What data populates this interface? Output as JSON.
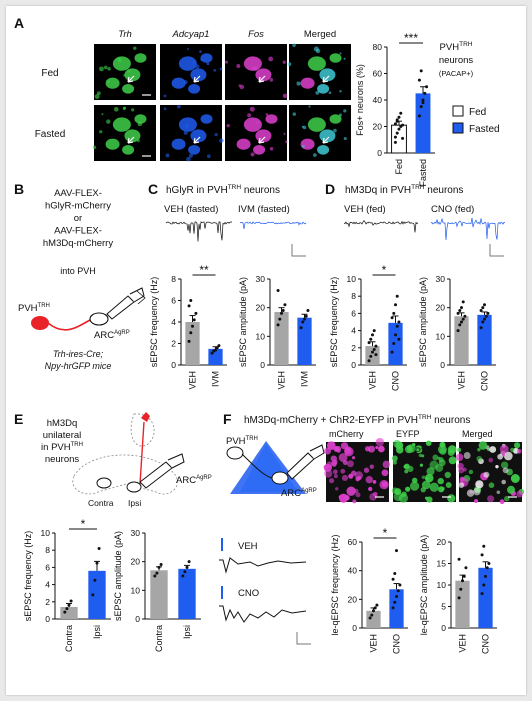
{
  "colors": {
    "blue": "#1f5cf0",
    "gray": "#a6a6a6",
    "red": "#e8232a",
    "green": "#3fd04a",
    "magenta": "#e040d0",
    "cyan": "#3fc9d6",
    "trace_black": "#111111"
  },
  "panelA": {
    "letter": "A",
    "channels": [
      "Trh",
      "Adcyap1",
      "Fos",
      "Merged"
    ],
    "rows": [
      "Fed",
      "Fasted"
    ],
    "neuron_title_main": "PVH",
    "neuron_title_sup": "TRH",
    "neuron_title_rest": "neurons",
    "neuron_subtitle": "(PACAP+)",
    "legend": [
      "Fed",
      "Fasted"
    ],
    "significance": "***",
    "chart_data": {
      "type": "bar",
      "categories": [
        "Fed",
        "Fasted"
      ],
      "values": [
        21,
        45
      ],
      "sem": [
        3,
        5
      ],
      "points": [
        [
          12,
          15,
          18,
          20,
          21,
          22,
          24,
          27,
          30,
          11,
          8,
          25
        ],
        [
          28,
          35,
          40,
          45,
          50,
          55,
          62,
          38
        ]
      ],
      "ylabel": "Fos+ neurons (%)",
      "yticks": [
        0,
        20,
        40,
        60,
        80
      ],
      "ylim": [
        0,
        80
      ]
    }
  },
  "panelB": {
    "letter": "B",
    "construct_lines": [
      "AAV-FLEX-",
      "hGlyR-mCherry",
      "or",
      "AAV-FLEX-",
      "hM3Dq-mCherry"
    ],
    "into": "into PVH",
    "pvh_main": "PVH",
    "pvh_sup": "TRH",
    "arc_main": "ARC",
    "arc_sup": "AgRP",
    "mice_line1": "Trh-ires-Cre;",
    "mice_line2": "Npy-hrGFP mice"
  },
  "panelC": {
    "letter": "C",
    "title_pre": "hGlyR in PVH",
    "title_sup": "TRH",
    "title_post": " neurons",
    "trace_left": "VEH (fasted)",
    "trace_right": "IVM (fasted)",
    "significance": "**",
    "chart_data": [
      {
        "type": "bar",
        "categories": [
          "VEH",
          "IVM"
        ],
        "values": [
          4.0,
          1.5
        ],
        "sem": [
          0.6,
          0.2
        ],
        "points": [
          [
            2.2,
            3.0,
            3.6,
            4.2,
            4.8,
            5.5,
            6.0
          ],
          [
            1.1,
            1.3,
            1.4,
            1.6,
            1.8
          ]
        ],
        "ylabel": "sEPSC frequency (Hz)",
        "yticks": [
          0,
          2,
          4,
          6,
          8
        ],
        "ylim": [
          0,
          8
        ]
      },
      {
        "type": "bar",
        "categories": [
          "VEH",
          "IVM"
        ],
        "values": [
          18.5,
          16.5
        ],
        "sem": [
          1.5,
          1.2
        ],
        "points": [
          [
            14,
            16,
            18,
            19,
            21,
            26
          ],
          [
            13,
            15,
            16,
            17,
            19
          ]
        ],
        "ylabel": "sEPSC amplitude (pA)",
        "yticks": [
          0,
          10,
          20,
          30
        ],
        "ylim": [
          0,
          30
        ]
      }
    ]
  },
  "panelD": {
    "letter": "D",
    "title_pre": "hM3Dq in PVH",
    "title_sup": "TRH",
    "title_post": " neurons",
    "trace_left": "VEH (fed)",
    "trace_right": "CNO (fed)",
    "significance": "*",
    "chart_data": [
      {
        "type": "bar",
        "categories": [
          "VEH",
          "CNO"
        ],
        "values": [
          2.2,
          4.9
        ],
        "sem": [
          0.5,
          0.8
        ],
        "points": [
          [
            0.5,
            1.0,
            1.5,
            1.8,
            2.2,
            2.6,
            3.0,
            3.5,
            4.0,
            1.2
          ],
          [
            1.5,
            2.5,
            3.5,
            4.5,
            5.0,
            5.5,
            6.0,
            7.0,
            8.0,
            3.0
          ]
        ],
        "ylabel": "sEPSC frequency (Hz)",
        "yticks": [
          0,
          2,
          4,
          6,
          8,
          10
        ],
        "ylim": [
          0,
          10
        ]
      },
      {
        "type": "bar",
        "categories": [
          "VEH",
          "CNO"
        ],
        "values": [
          17,
          17.5
        ],
        "sem": [
          1.2,
          1.0
        ],
        "points": [
          [
            12,
            14,
            15,
            16,
            17,
            18,
            19,
            20,
            22
          ],
          [
            13,
            15,
            16,
            17,
            18,
            19,
            20,
            21
          ]
        ],
        "ylabel": "sEPSC amplitude (pA)",
        "yticks": [
          0,
          10,
          20,
          30
        ],
        "ylim": [
          0,
          30
        ]
      }
    ]
  },
  "panelE": {
    "letter": "E",
    "desc_lines": [
      "hM3Dq",
      "unilateral",
      "in PVH",
      "neurons"
    ],
    "desc_sup": "TRH",
    "contra": "Contra",
    "ipsi": "Ipsi",
    "arc_main": "ARC",
    "arc_sup": "AgRP",
    "significance": "*",
    "chart_data": [
      {
        "type": "bar",
        "categories": [
          "Contra",
          "Ipsi"
        ],
        "values": [
          1.4,
          5.6
        ],
        "sem": [
          0.4,
          1.1
        ],
        "points": [
          [
            0.8,
            1.2,
            1.6,
            2.1
          ],
          [
            2.8,
            4.5,
            6.5,
            8.2
          ]
        ],
        "ylabel": "sEPSC frequency (Hz)",
        "yticks": [
          0,
          2,
          4,
          6,
          8,
          10
        ],
        "ylim": [
          0,
          10
        ]
      },
      {
        "type": "bar",
        "categories": [
          "Contra",
          "Ipsi"
        ],
        "values": [
          17,
          17.5
        ],
        "sem": [
          1.2,
          1.2
        ],
        "points": [
          [
            15,
            16,
            18,
            19
          ],
          [
            15,
            16.5,
            18,
            20
          ]
        ],
        "ylabel": "sEPSC amplitude (pA)",
        "yticks": [
          0,
          10,
          20,
          30
        ],
        "ylim": [
          0,
          30
        ]
      }
    ]
  },
  "panelF": {
    "letter": "F",
    "title_pre": "hM3Dq-mCherry + ChR2-EYFP in PVH",
    "title_sup": "TRH",
    "title_post": " neurons",
    "pvh_main": "PVH",
    "pvh_sup": "TRH",
    "arc_main": "ARC",
    "arc_sup": "AgRP",
    "micro_labels": [
      "mCherry",
      "EYFP",
      "Merged"
    ],
    "micro_inner": "PVH",
    "trace_top": "VEH",
    "trace_bottom": "CNO",
    "significance": "*",
    "chart_data": [
      {
        "type": "bar",
        "categories": [
          "VEH",
          "CNO"
        ],
        "values": [
          12,
          27
        ],
        "sem": [
          2,
          4
        ],
        "points": [
          [
            7,
            9,
            12,
            14,
            16
          ],
          [
            14,
            18,
            22,
            26,
            30,
            34,
            38,
            54
          ]
        ],
        "ylabel": "le-qEPSC frequency (Hz)",
        "yticks": [
          0,
          20,
          40,
          60
        ],
        "ylim": [
          0,
          60
        ]
      },
      {
        "type": "bar",
        "categories": [
          "VEH",
          "CNO"
        ],
        "values": [
          11,
          14
        ],
        "sem": [
          1.3,
          1.4
        ],
        "points": [
          [
            7,
            9,
            11,
            12,
            14,
            16
          ],
          [
            8,
            10,
            12,
            14,
            15,
            17,
            19
          ]
        ],
        "ylabel": "le-qEPSC amplitude (pA)",
        "yticks": [
          0,
          5,
          10,
          15,
          20
        ],
        "ylim": [
          0,
          20
        ]
      }
    ]
  }
}
